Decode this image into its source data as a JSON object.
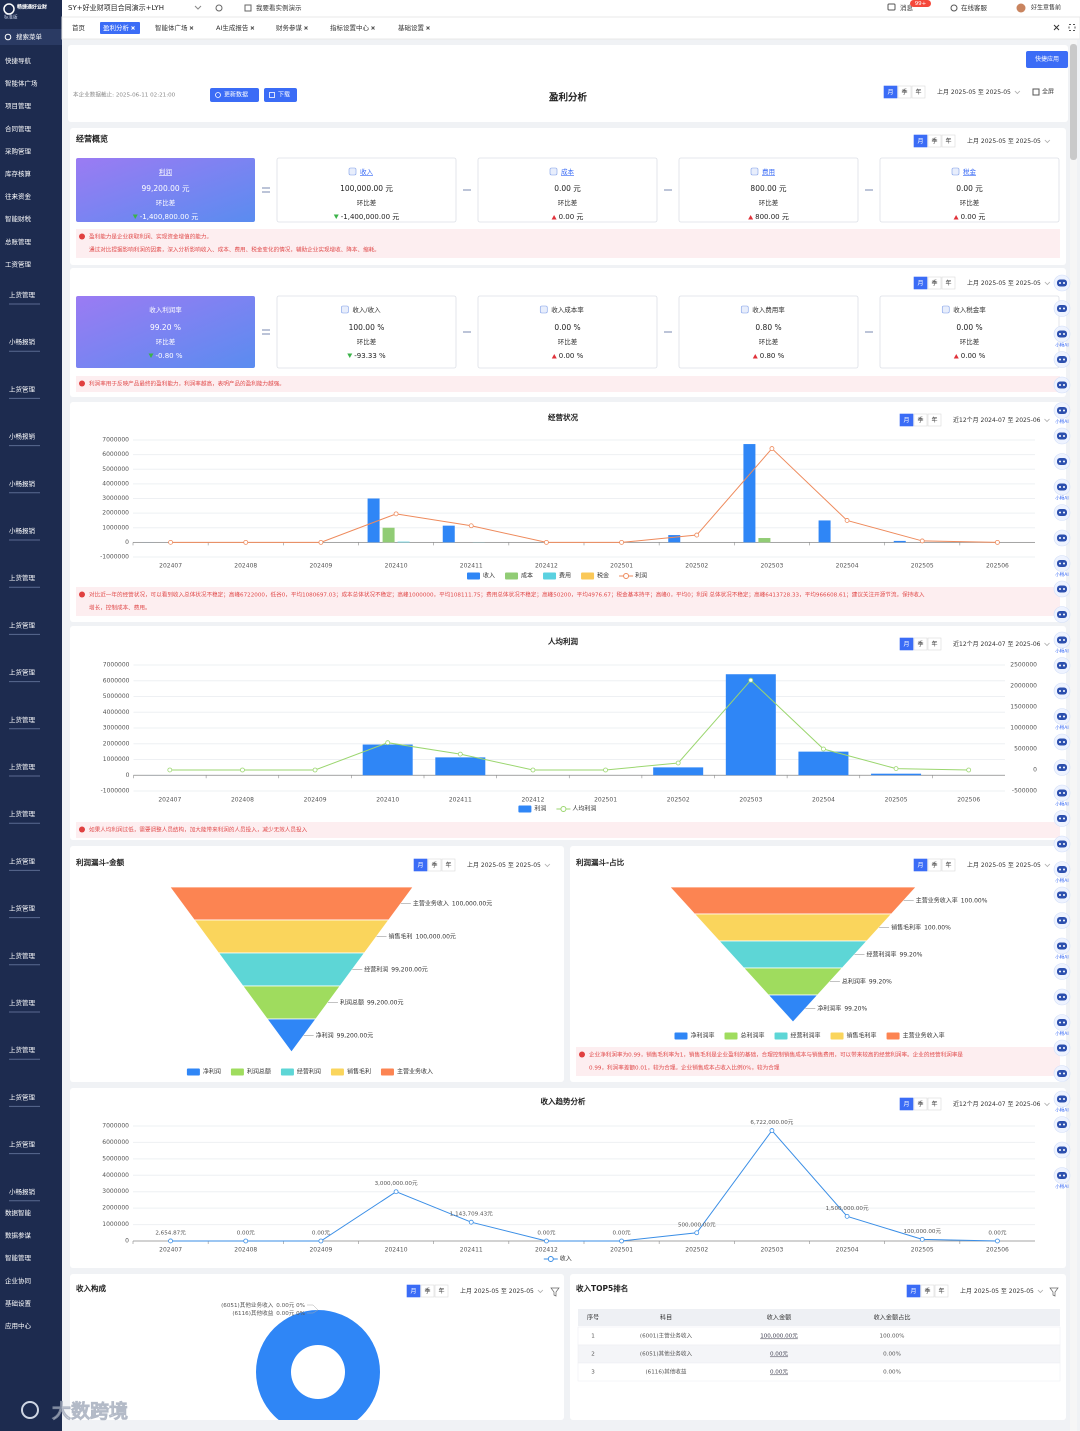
{
  "app": {
    "logo": "畅捷通好业财",
    "edition": "标准版",
    "search": "搜索菜单",
    "company": "SY+好业财项目合同演示+LYH",
    "demo": "我要看实例演示",
    "message": "消息",
    "badge": "99+",
    "service": "在线客服",
    "user": "好生意售前"
  },
  "menu_top": [
    "快捷导航",
    "智能体广场",
    "项目管理",
    "合同管理",
    "采购管理",
    "库存核算",
    "往来资金",
    "智能财税",
    "总账管理",
    "工资管理"
  ],
  "menu_mid": [
    "上货管理",
    "小畅报销",
    "上货管理",
    "小畅报销",
    "小畅报销",
    "小畅报销",
    "上货管理",
    "上货管理",
    "上货管理",
    "上货管理",
    "上货管理",
    "上货管理",
    "上货管理",
    "上货管理",
    "上货管理",
    "上货管理",
    "上货管理",
    "上货管理",
    "上货管理",
    "小畅报销"
  ],
  "menu_bottom": [
    "数据智能",
    "数据参谋",
    "智能管理",
    "企业协同",
    "基础设置",
    "应用中心"
  ],
  "tabs": [
    "首页",
    "盈利分析",
    "智能体广场",
    "AI生成报告",
    "财务参谋",
    "指标设置中心",
    "基础设置"
  ],
  "header": {
    "data_date": "本企业数据截止: 2025-06-11 02:21:00",
    "refresh": "更新数据",
    "download": "下载",
    "title": "盈利分析",
    "fullscreen": "全屏",
    "quick": "快捷应用"
  },
  "periods": [
    "月",
    "季",
    "年"
  ],
  "ranges": [
    "上月 2025-05 至 2025-05",
    "近12个月 2024-07 至 2025-06"
  ],
  "overview": {
    "title": "经营概览",
    "change_label": "环比差",
    "cards": [
      {
        "name": "利润",
        "value": "99,200.00 元",
        "change": "-1,400,800.00 元",
        "trend": "down"
      },
      {
        "name": "收入",
        "value": "100,000.00 元",
        "change": "-1,400,000.00 元",
        "trend": "down"
      },
      {
        "name": "成本",
        "value": "0.00 元",
        "change": "0.00 元",
        "trend": "up"
      },
      {
        "name": "费用",
        "value": "800.00 元",
        "change": "800.00 元",
        "trend": "up"
      },
      {
        "name": "税金",
        "value": "0.00 元",
        "change": "0.00 元",
        "trend": "up"
      }
    ],
    "notes": [
      "盈利能力是企业获取利润、实现资金增值的能力。",
      "通过对比捏据影响利润的因素，深入分析影响收入、成本、费用、税金变化的情况，辅助企业实现增收、降本、缩耗。"
    ]
  },
  "ratios": {
    "change_label": "环比差",
    "cards": [
      {
        "name": "收入利润率",
        "value": "99.20 %",
        "change": "-0.80 %",
        "trend": "down"
      },
      {
        "name": "收入/收入",
        "value": "100.00 %",
        "change": "-93.33 %",
        "trend": "down"
      },
      {
        "name": "收入成本率",
        "value": "0.00 %",
        "change": "0.00 %",
        "trend": "up"
      },
      {
        "name": "收入费用率",
        "value": "0.80 %",
        "change": "0.80 %",
        "trend": "up"
      },
      {
        "name": "收入税金率",
        "value": "0.00 %",
        "change": "0.00 %",
        "trend": "up"
      }
    ],
    "notes": [
      "利润率用于反映产品最终的盈利能力，利润率越高，表明产品的盈利能力越强。"
    ]
  },
  "chart_data": [
    {
      "type": "bar",
      "title": "经营状况",
      "categories": [
        "202407",
        "202408",
        "202409",
        "202410",
        "202411",
        "202412",
        "202501",
        "202502",
        "202503",
        "202504",
        "202505",
        "202506"
      ],
      "ylim": [
        -1000000,
        7000000
      ],
      "yticks": [
        -1000000,
        0,
        1000000,
        2000000,
        3000000,
        4000000,
        5000000,
        6000000,
        7000000
      ],
      "grid": true,
      "series": [
        {
          "name": "收入",
          "type": "bar",
          "color": "#2f86f6",
          "values": [
            2654.87,
            0,
            0,
            3000000,
            1143709.43,
            0,
            0,
            500000,
            6722000,
            1500000,
            100000,
            0
          ]
        },
        {
          "name": "成本",
          "type": "bar",
          "color": "#91cc75",
          "values": [
            0,
            0,
            0,
            1000000,
            0,
            0,
            0,
            0,
            297341,
            0,
            0,
            0
          ]
        },
        {
          "name": "费用",
          "type": "bar",
          "color": "#5ad1e0",
          "values": [
            0,
            0,
            0,
            50200,
            8720,
            0,
            0,
            0,
            0,
            0,
            800,
            0
          ]
        },
        {
          "name": "税金",
          "type": "bar",
          "color": "#fac858",
          "values": [
            0,
            0,
            0,
            0,
            0,
            0,
            0,
            0,
            0,
            0,
            0,
            0
          ]
        },
        {
          "name": "利润",
          "type": "line",
          "color": "#ee8a5c",
          "values": [
            1585.56,
            0,
            0,
            1949800,
            1134989.43,
            0,
            0,
            500000,
            6413728.33,
            1500000,
            99200,
            0
          ]
        }
      ],
      "notes": [
        "对比近一年的经营状况，可以看到收入总体状况不稳定；高峰6722000，低谷0，平均1080697.03；成本总体状况不稳定；高峰1000000，平均108111.75；费用总体状况不稳定；高峰50200，平均4976.67；税金基本持平；高峰0，平均0；利润 总体状况不稳定；高峰6413728.33，平均966608.61；建议关注开源节流，保持收入",
        "增长，控制成本、费用。"
      ]
    },
    {
      "type": "bar",
      "title": "人均利润",
      "categories": [
        "202407",
        "202408",
        "202409",
        "202410",
        "202411",
        "202412",
        "202501",
        "202502",
        "202503",
        "202504",
        "202505",
        "202506"
      ],
      "ylim": [
        -1000000,
        7000000
      ],
      "yticks": [
        -1000000,
        0,
        1000000,
        2000000,
        3000000,
        4000000,
        5000000,
        6000000,
        7000000
      ],
      "y2lim": [
        -500000,
        2500000
      ],
      "y2ticks": [
        -500000,
        0,
        500000,
        1000000,
        1500000,
        2000000,
        2500000
      ],
      "grid": true,
      "series": [
        {
          "name": "利润",
          "type": "bar",
          "color": "#2f86f6",
          "values": [
            1585.56,
            0,
            0,
            1949800,
            1134989.43,
            0,
            0,
            500000,
            6413728.33,
            1500000,
            99200,
            0
          ]
        },
        {
          "name": "人均利润",
          "type": "line",
          "axis": "y2",
          "color": "#9bd66f",
          "values": [
            528.52,
            0,
            0,
            649933,
            378330,
            0,
            0,
            166667,
            2137909,
            500000,
            33067,
            0
          ]
        }
      ],
      "notes": [
        "如果人均利润过低，需要调整人员结构，加大能带来利润的人员投入，减少无效人员投入"
      ]
    },
    {
      "type": "funnel",
      "title": "利润漏斗-金额",
      "categories": [
        "主营业务收入",
        "销售毛利",
        "经营利润",
        "利润总额",
        "净利润"
      ],
      "values": [
        100000,
        100000,
        99200,
        99200,
        99200
      ],
      "value_labels": [
        "100,000.00元",
        "100,000.00元",
        "99,200.00元",
        "99,200.00元",
        "99,200.00元"
      ],
      "colors": [
        "#fc8452",
        "#fad55c",
        "#5dd6d6",
        "#9fdc5e",
        "#2f86f6"
      ]
    },
    {
      "type": "funnel",
      "title": "利润漏斗-占比",
      "categories": [
        "主营业务收入率",
        "销售毛利率",
        "经营利润率",
        "总利润率",
        "净利润率"
      ],
      "values": [
        100,
        100,
        99.2,
        99.2,
        99.2
      ],
      "value_labels": [
        "100.00%",
        "100.00%",
        "99.20%",
        "99.20%",
        "99.20%"
      ],
      "colors": [
        "#fc8452",
        "#fad55c",
        "#5dd6d6",
        "#9fdc5e",
        "#2f86f6"
      ],
      "notes": [
        "企业净利润率为0.99，销售毛利率为1，销售毛利是企业盈利的基础，合理控制销售成本与销售费用，可以带来较高的经营利润率。企业的经营利润率是",
        "0.99，利润率差额0.01，较为合理。企业销售成本占收入比例0%，较为合理"
      ]
    },
    {
      "type": "line",
      "title": "收入趋势分析",
      "categories": [
        "202407",
        "202408",
        "202409",
        "202410",
        "202411",
        "202412",
        "202501",
        "202502",
        "202503",
        "202504",
        "202505",
        "202506"
      ],
      "ylim": [
        0,
        7000000
      ],
      "yticks": [
        0,
        1000000,
        2000000,
        3000000,
        4000000,
        5000000,
        6000000,
        7000000
      ],
      "grid": true,
      "series": [
        {
          "name": "收入",
          "type": "line",
          "color": "#3a8ee6",
          "values": [
            2654.87,
            0,
            0,
            3000000,
            1143709.43,
            0,
            0,
            500000,
            6722000,
            1500000,
            100000,
            0
          ],
          "value_labels": [
            "2,654.87元",
            "0.00元",
            "0.00元",
            "3,000,000.00元",
            "1,143,709.43元",
            "0.00元",
            "0.00元",
            "500,000.00元",
            "6,722,000.00元",
            "1,500,000.00元",
            "100,000.00元",
            "0.00元"
          ]
        }
      ]
    },
    {
      "type": "pie",
      "title": "收入构成",
      "categories": [
        null,
        "(6051)其他业务收入",
        "(6116)其他收益"
      ],
      "values": [
        100000,
        0,
        0
      ],
      "value_labels": [
        null,
        "0.00元 0%",
        "0.00元 0%"
      ],
      "colors": [
        "#2f86f6",
        "#91cc75",
        "#fac858"
      ]
    }
  ],
  "top5": {
    "title": "收入TOP5排名",
    "columns": [
      "序号",
      "科目",
      "收入金额",
      "收入金额占比"
    ],
    "rows": [
      [
        "1",
        "(6001)主营业务收入",
        "100,000.00元",
        "100.00%"
      ],
      [
        "2",
        "(6051)其他业务收入",
        "0.00元",
        "0.00%"
      ],
      [
        "3",
        "(6116)其他收益",
        "0.00元",
        "0.00%"
      ]
    ]
  },
  "assistant": "小畅AI",
  "watermark": "大数跨境"
}
